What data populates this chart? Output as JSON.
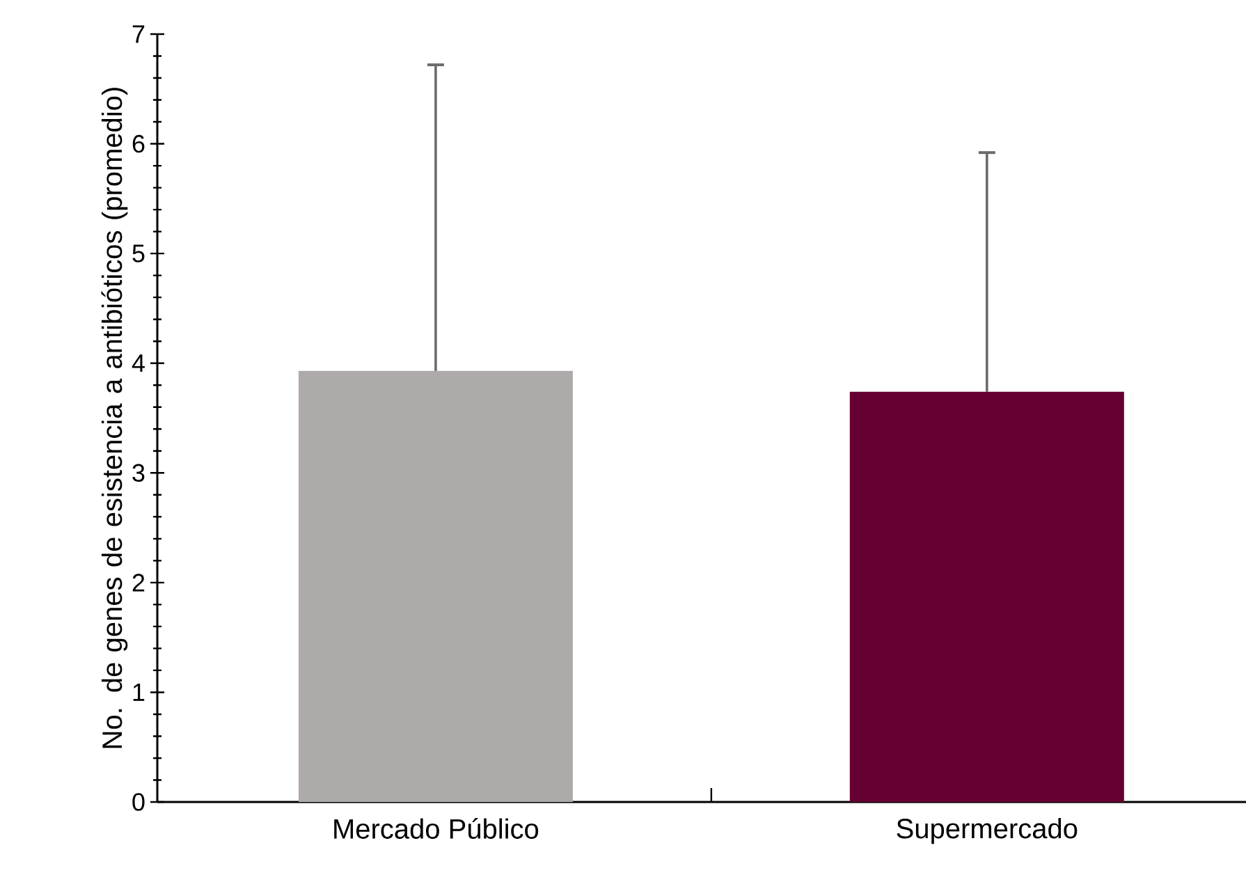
{
  "chart_data": {
    "type": "bar",
    "ylabel": "No. de genes de esistencia a antibióticos (promedio)",
    "categories": [
      "Mercado Público",
      "Supermercado"
    ],
    "values": [
      3.93,
      3.74
    ],
    "colors": [
      "#aeaaaa",
      "#660033"
    ],
    "errors": [
      [
        3.93,
        6.72
      ],
      [
        3.74,
        5.92
      ]
    ],
    "ylim": [
      0,
      7
    ],
    "yticks": [
      0,
      1,
      2,
      3,
      4,
      5,
      6,
      7
    ],
    "grid": false
  }
}
